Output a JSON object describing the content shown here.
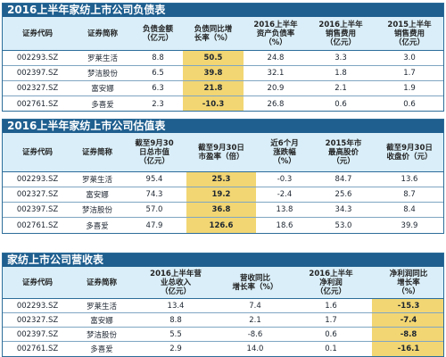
{
  "tables": [
    {
      "title": "2016上半年家纺上市公司负债表",
      "headers": [
        "证券代码",
        "证券简称",
        "负债金额\n（亿元）",
        "负债同比增\n长率（%）",
        "2016上半年\n资产负债率\n（%）",
        "2016上半年\n销售费用\n（亿元）",
        "2015上半年\n销售费用\n（亿元）"
      ],
      "rows": [
        [
          "002293.SZ",
          "罗莱生活",
          "8.8",
          "50.5",
          "24.8",
          "3.3",
          "3.0"
        ],
        [
          "002397.SZ",
          "梦洁股份",
          "6.5",
          "39.8",
          "32.1",
          "1.8",
          "1.7"
        ],
        [
          "002327.SZ",
          "富安娜",
          "6.3",
          "21.8",
          "20.9",
          "2.1",
          "1.9"
        ],
        [
          "002761.SZ",
          "多喜爱",
          "2.3",
          "-10.3",
          "26.8",
          "0.6",
          "0.6"
        ]
      ]
    },
    {
      "title": "2016上半年家纺上市公司估值表",
      "headers": [
        "证券代码",
        "证券简称",
        "截至9月30\n日总市值\n（亿元）",
        "截至9月30日\n市盈率（倍）",
        "近6个月\n涨跌幅\n（%）",
        "2015年市\n最高股价\n（元）",
        "截至9月30日\n收盘价（元）"
      ],
      "rows": [
        [
          "002293.SZ",
          "罗莱生活",
          "95.4",
          "25.3",
          "-0.3",
          "84.7",
          "13.6"
        ],
        [
          "002327.SZ",
          "富安娜",
          "74.3",
          "19.2",
          "-2.4",
          "25.6",
          "8.7"
        ],
        [
          "002397.SZ",
          "梦洁股份",
          "57.0",
          "36.8",
          "13.8",
          "34.3",
          "8.4"
        ],
        [
          "002761.SZ",
          "多喜爱",
          "47.9",
          "126.6",
          "18.6",
          "53.0",
          "39.9"
        ]
      ]
    },
    {
      "title": "家纺上市公司营收表",
      "headers": [
        "证券代码",
        "证券简称",
        "2016上半年营\n业总收入\n（亿元）",
        "营收同比\n增长率（%）",
        "2016上半年\n净利润\n（亿元）",
        "净利润同比\n增长率\n（%）"
      ],
      "rows": [
        [
          "002293.SZ",
          "罗莱生活",
          "13.4",
          "7.4",
          "1.6",
          "-15.3"
        ],
        [
          "002327.SZ",
          "富安娜",
          "8.8",
          "2.1",
          "1.7",
          "-7.4"
        ],
        [
          "002397.SZ",
          "梦洁股份",
          "5.5",
          "-8.6",
          "0.6",
          "-8.8"
        ],
        [
          "002761.SZ",
          "多喜爱",
          "2.9",
          "14.0",
          "0.1",
          "-16.1"
        ]
      ]
    }
  ],
  "colors": {
    "title_bg": "#1f5f8f",
    "header_bg": "#d9eef8",
    "highlight": "#f2d673",
    "border": "#2d6d9a"
  }
}
